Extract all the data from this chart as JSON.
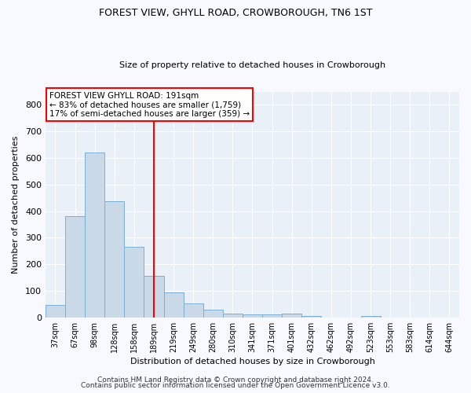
{
  "title": "FOREST VIEW, GHYLL ROAD, CROWBOROUGH, TN6 1ST",
  "subtitle": "Size of property relative to detached houses in Crowborough",
  "xlabel": "Distribution of detached houses by size in Crowborough",
  "ylabel": "Number of detached properties",
  "bar_color": "#c9d9e8",
  "bar_edge_color": "#7bafd4",
  "categories": [
    "37sqm",
    "67sqm",
    "98sqm",
    "128sqm",
    "158sqm",
    "189sqm",
    "219sqm",
    "249sqm",
    "280sqm",
    "310sqm",
    "341sqm",
    "371sqm",
    "401sqm",
    "432sqm",
    "462sqm",
    "492sqm",
    "523sqm",
    "553sqm",
    "583sqm",
    "614sqm",
    "644sqm"
  ],
  "values": [
    47,
    382,
    622,
    437,
    267,
    155,
    95,
    53,
    28,
    15,
    12,
    10,
    13,
    5,
    0,
    0,
    6,
    0,
    0,
    0,
    0
  ],
  "red_line_x": 5.0,
  "annotation_text": "FOREST VIEW GHYLL ROAD: 191sqm\n← 83% of detached houses are smaller (1,759)\n17% of semi-detached houses are larger (359) →",
  "ylim": [
    0,
    850
  ],
  "yticks": [
    0,
    100,
    200,
    300,
    400,
    500,
    600,
    700,
    800
  ],
  "fig_bg_color": "#f8f8ff",
  "plot_bg_color": "#eaf0f8",
  "grid_color": "#ffffff",
  "footer1": "Contains HM Land Registry data © Crown copyright and database right 2024.",
  "footer2": "Contains public sector information licensed under the Open Government Licence v3.0."
}
